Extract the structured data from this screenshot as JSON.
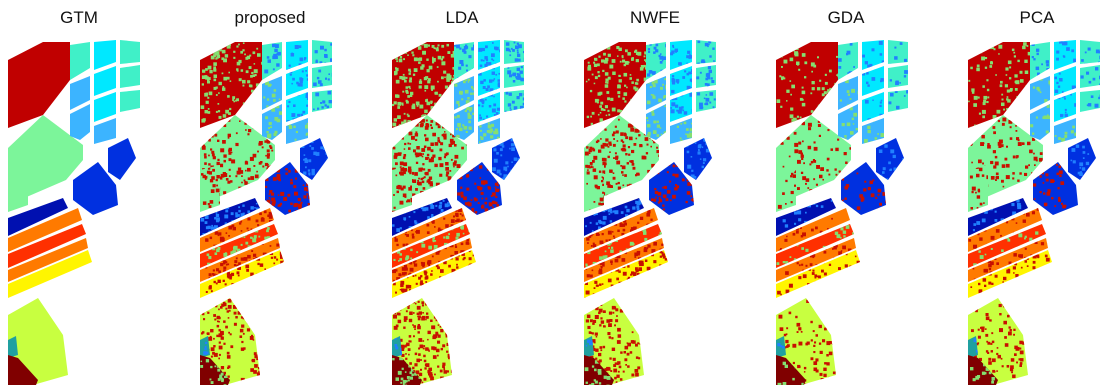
{
  "figure": {
    "panels": [
      {
        "title": "GTM",
        "noise": 0
      },
      {
        "title": "proposed",
        "noise": 0.55
      },
      {
        "title": "LDA",
        "noise": 0.75
      },
      {
        "title": "NWFE",
        "noise": 0.6
      },
      {
        "title": "GDA",
        "noise": 0.3
      },
      {
        "title": "PCA",
        "noise": 0.35
      }
    ],
    "colors": {
      "dark_red": "#c00000",
      "light_green": "#7cf59a",
      "aqua": "#40f0c8",
      "cyan": "#00e8ff",
      "sky": "#3cb4ff",
      "blue": "#0030e0",
      "navy": "#0010b0",
      "orange": "#ff7a00",
      "red_orange": "#ff3000",
      "yellow": "#fff500",
      "lime": "#c8ff40",
      "maroon": "#800000",
      "teal": "#20a0a0",
      "noise_red": "#c81000",
      "noise_green": "#84e070",
      "noise_blue": "#2080ff"
    }
  }
}
